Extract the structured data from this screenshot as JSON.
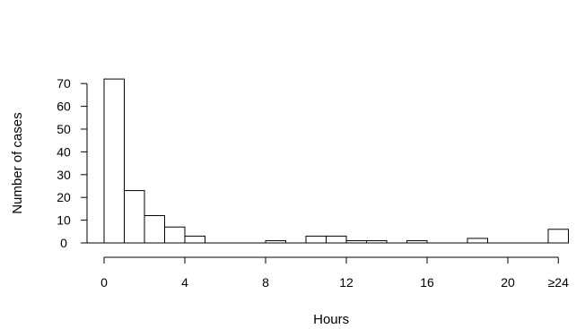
{
  "chart_data": {
    "type": "bar",
    "subtype": "histogram",
    "title": "",
    "xlabel": "Hours",
    "ylabel": "Number of cases",
    "bin_width_hours": 1,
    "bins": [
      {
        "start": 0,
        "end": 1,
        "value": 72
      },
      {
        "start": 1,
        "end": 2,
        "value": 23
      },
      {
        "start": 2,
        "end": 3,
        "value": 12
      },
      {
        "start": 3,
        "end": 4,
        "value": 7
      },
      {
        "start": 4,
        "end": 5,
        "value": 3
      },
      {
        "start": 5,
        "end": 6,
        "value": 0
      },
      {
        "start": 6,
        "end": 7,
        "value": 0
      },
      {
        "start": 7,
        "end": 8,
        "value": 0
      },
      {
        "start": 8,
        "end": 9,
        "value": 1
      },
      {
        "start": 9,
        "end": 10,
        "value": 0
      },
      {
        "start": 10,
        "end": 11,
        "value": 3
      },
      {
        "start": 11,
        "end": 12,
        "value": 3
      },
      {
        "start": 12,
        "end": 13,
        "value": 1
      },
      {
        "start": 13,
        "end": 14,
        "value": 1
      },
      {
        "start": 14,
        "end": 15,
        "value": 0
      },
      {
        "start": 15,
        "end": 16,
        "value": 1
      },
      {
        "start": 16,
        "end": 17,
        "value": 0
      },
      {
        "start": 17,
        "end": 18,
        "value": 0
      },
      {
        "start": 18,
        "end": 19,
        "value": 2
      },
      {
        "start": 19,
        "end": 20,
        "value": 0
      },
      {
        "start": 20,
        "end": 21,
        "value": 0
      },
      {
        "start": 21,
        "end": 22,
        "value": 0
      },
      {
        "start": 22,
        "end": 23,
        "value": 6
      }
    ],
    "overflow_bin_label": "≥24",
    "overflow_bin_value": 6,
    "x_ticks": [
      {
        "value": 0,
        "label": "0"
      },
      {
        "value": 4,
        "label": "4"
      },
      {
        "value": 8,
        "label": "8"
      },
      {
        "value": 12,
        "label": "12"
      },
      {
        "value": 16,
        "label": "16"
      },
      {
        "value": 20,
        "label": "20"
      },
      {
        "value": 22.5,
        "label": "≥24"
      }
    ],
    "y_ticks": [
      0,
      10,
      20,
      30,
      40,
      50,
      60,
      70
    ],
    "xlim": [
      0,
      23
    ],
    "ylim": [
      0,
      72
    ],
    "grid": false,
    "legend": "none",
    "bar_fill": "#ffffff",
    "bar_stroke": "#000000"
  }
}
